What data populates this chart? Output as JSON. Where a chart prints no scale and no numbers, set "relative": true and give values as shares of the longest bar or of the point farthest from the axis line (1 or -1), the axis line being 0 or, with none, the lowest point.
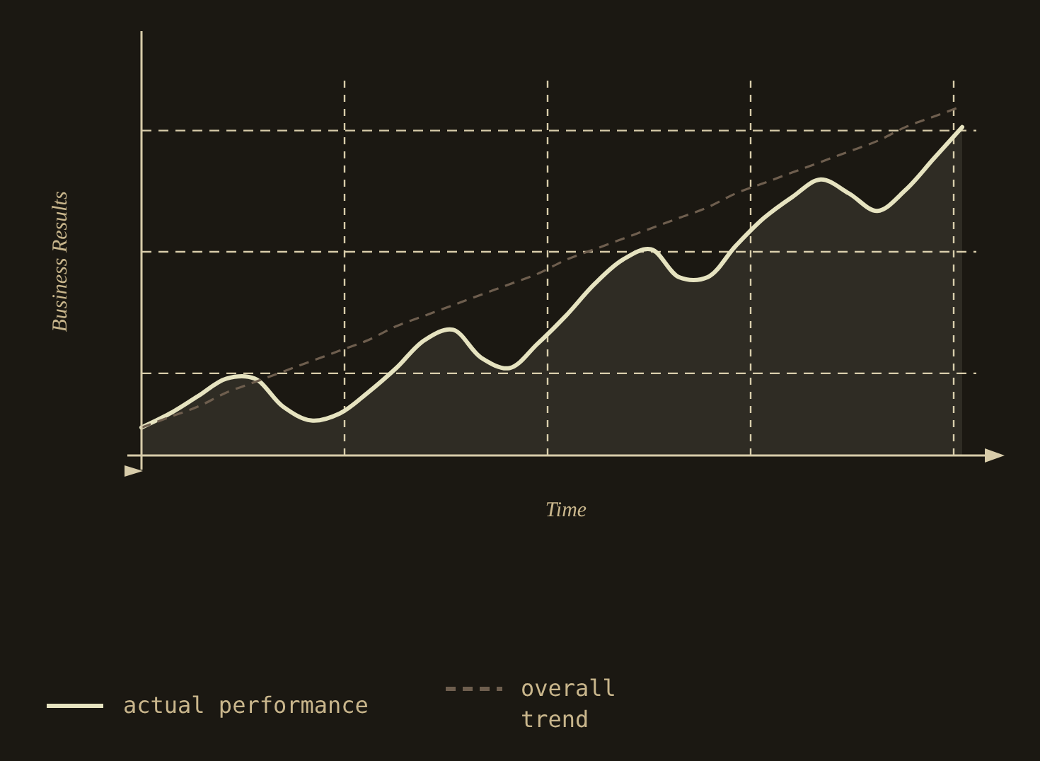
{
  "chart_data": {
    "type": "area",
    "xlabel": "Time",
    "ylabel": "Business Results",
    "relative": true,
    "grid": "x",
    "legend": "bottom",
    "ref_lines": [
      {
        "axis": "y",
        "value": 0.235,
        "color": "#d8ccaa",
        "line_style": "dashed"
      },
      {
        "axis": "y",
        "value": 0.583,
        "color": "#d8ccaa",
        "line_style": "dashed"
      },
      {
        "axis": "y",
        "value": 0.93,
        "color": "#d8ccaa",
        "line_style": "dashed"
      }
    ],
    "categories": [
      null,
      null,
      null,
      null,
      null,
      null,
      null,
      null,
      null,
      null,
      null,
      null,
      null,
      null,
      null,
      null,
      null,
      null,
      null,
      null,
      null,
      null,
      null,
      null,
      null,
      null,
      null,
      null,
      null,
      null
    ],
    "series": [
      {
        "name": "actual performance",
        "color": "#e6e3c0",
        "marker": "none",
        "line_style": "solid",
        "values": [
          0.08,
          0.12,
          0.17,
          0.22,
          0.22,
          0.14,
          0.1,
          0.12,
          0.18,
          0.25,
          0.33,
          0.36,
          0.28,
          0.25,
          0.32,
          0.4,
          0.49,
          0.56,
          0.59,
          0.51,
          0.51,
          0.6,
          0.68,
          0.74,
          0.79,
          0.75,
          0.7,
          0.76,
          0.85,
          0.94
        ]
      },
      {
        "name": "overall trend",
        "type": "line",
        "color": "#6e5e4e",
        "marker": "none",
        "line_style": "dashed",
        "values": [
          0.08,
          0.11,
          0.14,
          0.18,
          0.21,
          0.24,
          0.27,
          0.3,
          0.33,
          0.37,
          0.4,
          0.43,
          0.46,
          0.49,
          0.52,
          0.56,
          0.59,
          0.62,
          0.65,
          0.68,
          0.71,
          0.75,
          0.78,
          0.81,
          0.84,
          0.87,
          0.9,
          0.94,
          0.97,
          1.0
        ]
      }
    ]
  }
}
